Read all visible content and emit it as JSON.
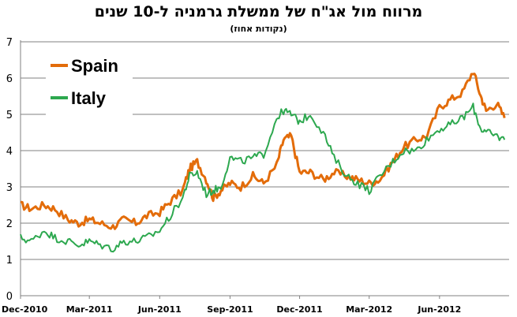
{
  "chart_data": {
    "type": "line",
    "title": "מרווח מול אג\"ח של ממשלת גרמניה ל-10 שנים",
    "subtitle": "(נקודות אחוז)",
    "xlabel": "",
    "ylabel": "",
    "ylim": [
      0,
      7
    ],
    "yticks": [
      "0",
      "1",
      "2",
      "3",
      "4",
      "5",
      "6",
      "7"
    ],
    "xticks": [
      "Dec-2010",
      "Mar-2011",
      "Jun-2011",
      "Sep-2011",
      "Dec-2011",
      "Mar-2012",
      "Jun-2012"
    ],
    "grid": "horizontal",
    "legend_position": "top-left",
    "x": [
      "2010-12-01",
      "2010-12-15",
      "2011-01-01",
      "2011-01-15",
      "2011-02-01",
      "2011-02-15",
      "2011-03-01",
      "2011-03-15",
      "2011-04-01",
      "2011-04-15",
      "2011-05-01",
      "2011-05-15",
      "2011-06-01",
      "2011-06-15",
      "2011-07-01",
      "2011-07-10",
      "2011-07-20",
      "2011-08-01",
      "2011-08-10",
      "2011-08-20",
      "2011-09-01",
      "2011-09-15",
      "2011-10-01",
      "2011-10-15",
      "2011-11-01",
      "2011-11-10",
      "2011-11-20",
      "2011-12-01",
      "2011-12-15",
      "2012-01-01",
      "2012-01-15",
      "2012-02-01",
      "2012-02-15",
      "2012-03-01",
      "2012-03-15",
      "2012-04-01",
      "2012-04-15",
      "2012-05-01",
      "2012-05-15",
      "2012-06-01",
      "2012-06-15",
      "2012-07-01",
      "2012-07-15",
      "2012-07-25",
      "2012-08-01",
      "2012-08-15",
      "2012-08-25"
    ],
    "series": [
      {
        "name": "Spain",
        "color": "#E36C0A",
        "values": [
          2.5,
          2.4,
          2.5,
          2.4,
          2.1,
          2.0,
          2.1,
          2.0,
          1.9,
          2.1,
          2.0,
          2.2,
          2.3,
          2.6,
          2.9,
          3.5,
          3.7,
          3.2,
          2.7,
          2.9,
          3.1,
          3.0,
          3.3,
          3.1,
          3.6,
          4.3,
          4.4,
          3.4,
          3.4,
          3.2,
          3.4,
          3.3,
          3.2,
          3.1,
          3.2,
          3.7,
          4.1,
          4.3,
          4.4,
          5.2,
          5.4,
          5.6,
          6.2,
          5.5,
          5.1,
          5.3,
          4.9
        ],
        "line_width": 3
      },
      {
        "name": "Italy",
        "color": "#2DA84F",
        "values": [
          1.6,
          1.5,
          1.8,
          1.6,
          1.5,
          1.4,
          1.5,
          1.4,
          1.3,
          1.5,
          1.5,
          1.6,
          1.8,
          2.2,
          2.7,
          3.3,
          3.4,
          2.8,
          2.9,
          3.0,
          3.8,
          3.7,
          3.8,
          3.9,
          4.9,
          5.1,
          5.0,
          4.8,
          5.0,
          4.5,
          3.8,
          3.3,
          3.1,
          2.9,
          3.3,
          3.7,
          4.0,
          4.0,
          4.3,
          4.6,
          4.7,
          4.9,
          5.2,
          4.6,
          4.5,
          4.4,
          4.3
        ],
        "line_width": 2
      }
    ]
  }
}
